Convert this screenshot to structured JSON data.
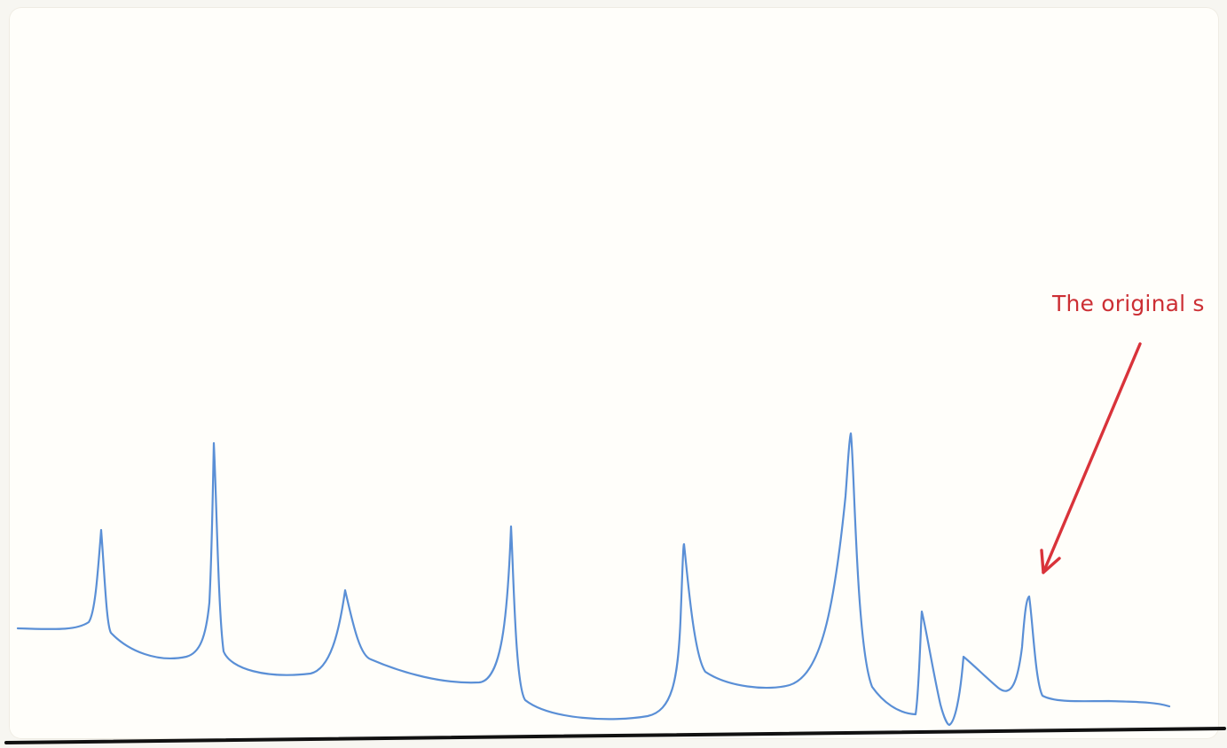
{
  "annotation": {
    "text": "The original s"
  },
  "colors": {
    "background": "#fffefa",
    "trace": "#5a8fd6",
    "arrow": "#d9333a",
    "baseline": "#111111"
  },
  "icon_names": [
    "arrow-annotation-icon"
  ]
}
